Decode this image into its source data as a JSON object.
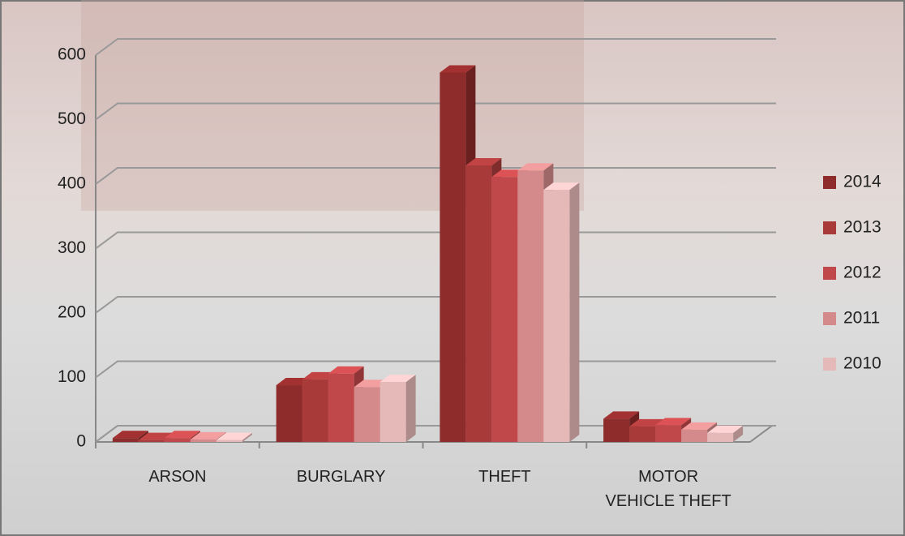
{
  "chart_data": {
    "type": "bar3d",
    "categories": [
      "ARSON",
      "BURGLARY",
      "THEFT",
      "MOTOR\nVEHICLE THEFT"
    ],
    "series": [
      {
        "name": "2014",
        "color": "#8e2b2b",
        "values": [
          6,
          88,
          573,
          36
        ]
      },
      {
        "name": "2013",
        "color": "#a83a3a",
        "values": [
          3,
          97,
          429,
          24
        ]
      },
      {
        "name": "2012",
        "color": "#c0474a",
        "values": [
          6,
          106,
          411,
          26
        ]
      },
      {
        "name": "2011",
        "color": "#d48a8a",
        "values": [
          4,
          85,
          421,
          19
        ]
      },
      {
        "name": "2010",
        "color": "#e6b9b9",
        "values": [
          3,
          93,
          391,
          14
        ]
      }
    ],
    "ylim": [
      0,
      600
    ],
    "yticks": [
      0,
      100,
      200,
      300,
      400,
      500,
      600
    ],
    "grid": true,
    "legend": "right"
  }
}
